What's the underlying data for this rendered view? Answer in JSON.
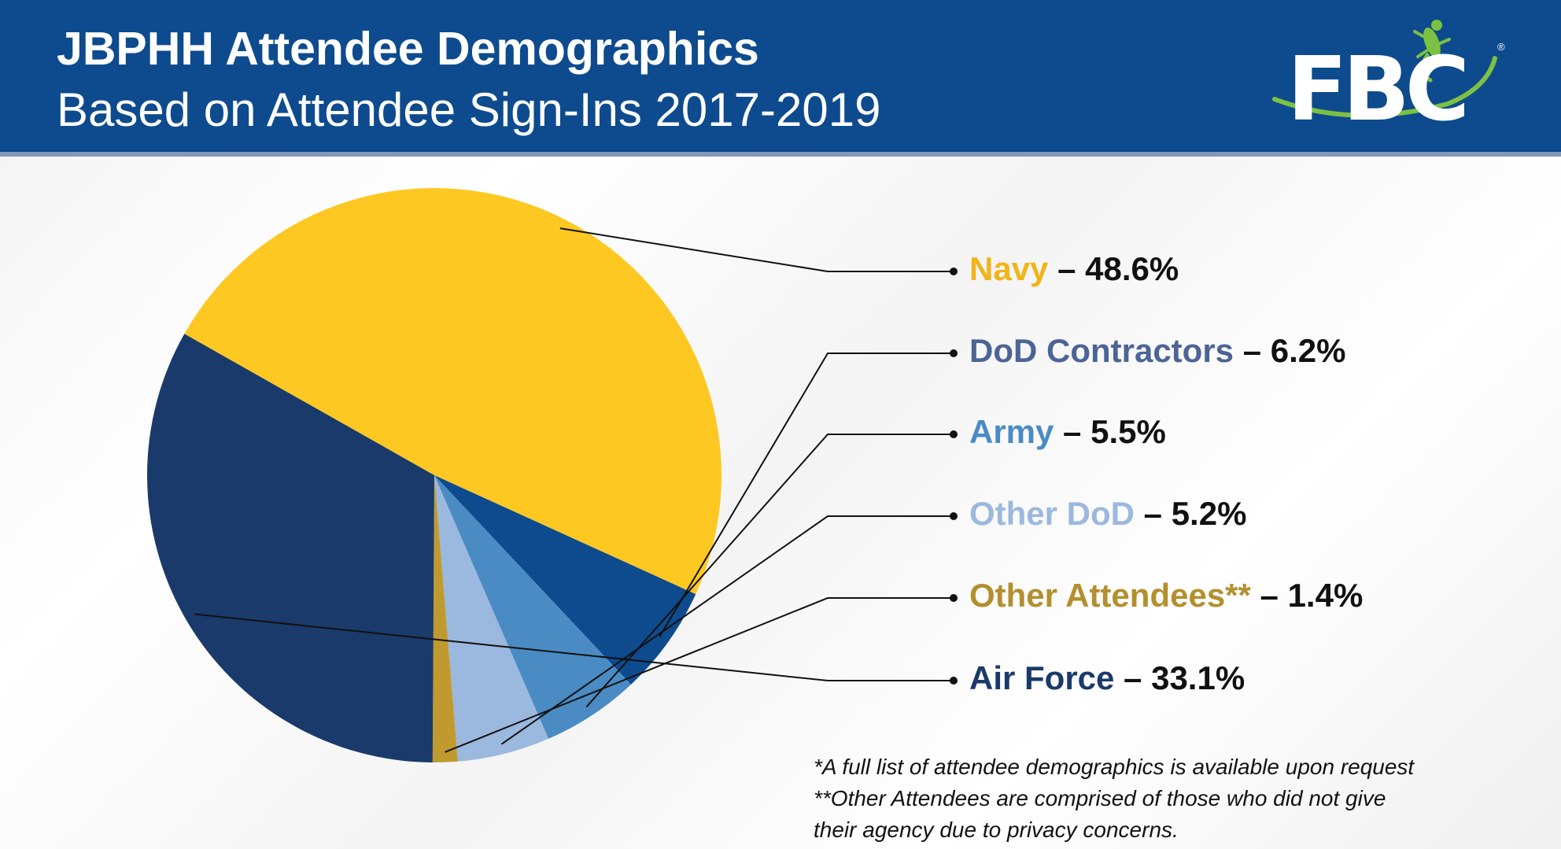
{
  "header": {
    "title": "JBPHH Attendee Demographics",
    "subtitle": "Based on Attendee Sign-Ins 2017-2019",
    "logo_text": "FBC",
    "logo_mark": "®",
    "logo_icon": "gecko-icon",
    "background_color": "#0d4b8e"
  },
  "chart_data": {
    "type": "pie",
    "title": "JBPHH Attendee Demographics",
    "subtitle": "Based on Attendee Sign-Ins 2017-2019",
    "legend_position": "right",
    "slices": [
      {
        "name": "Navy",
        "value": 48.6,
        "label": "– 48.6%",
        "color": "#fdc821"
      },
      {
        "name": "DoD Contractors",
        "value": 6.2,
        "label": "– 6.2%",
        "color": "#0d4b8e"
      },
      {
        "name": "Army",
        "value": 5.5,
        "label": "– 5.5%",
        "color": "#4a8bc4"
      },
      {
        "name": "Other DoD",
        "value": 5.2,
        "label": "– 5.2%",
        "color": "#9bb8de"
      },
      {
        "name": "Other Attendees**",
        "value": 1.4,
        "label": "– 1.4%",
        "color": "#c09a2e"
      },
      {
        "name": "Air Force",
        "value": 33.1,
        "label": "– 33.1%",
        "color": "#1a3a6b"
      }
    ],
    "label_colors": [
      "#f2b418",
      "#4c6496",
      "#4a8bc4",
      "#9bb8de",
      "#b38f2e",
      "#1a3a6b"
    ]
  },
  "footnotes": [
    "*A full list of attendee demographics is available upon request",
    "**Other Attendees are comprised of those who did not give",
    "their agency due to privacy concerns."
  ]
}
